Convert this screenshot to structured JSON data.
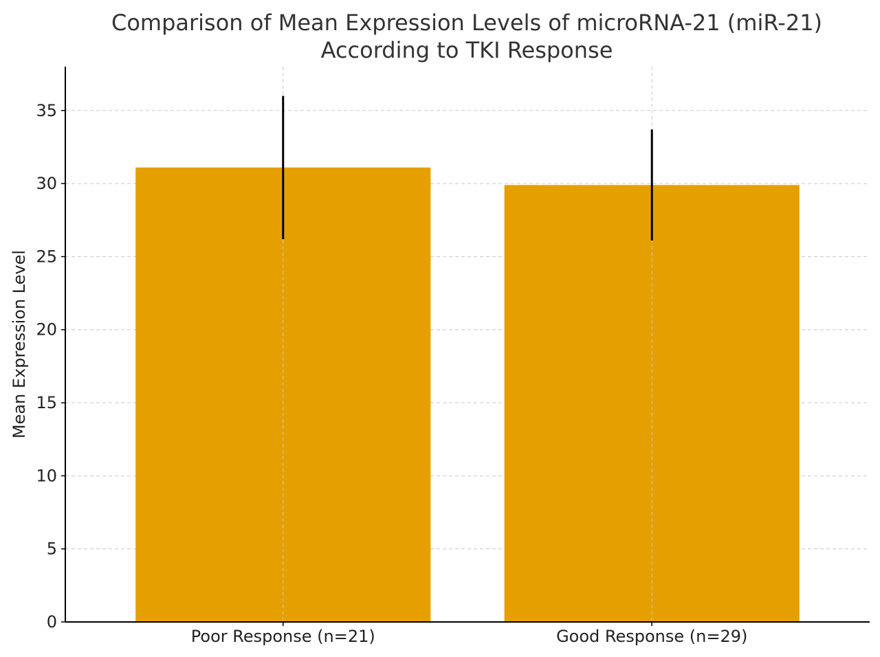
{
  "chart_data": {
    "type": "bar",
    "title": "Comparison of Mean Expression Levels of microRNA-21 (miR-21)",
    "subtitle": "According to TKI Response",
    "xlabel": "",
    "ylabel": "Mean Expression Level",
    "categories": [
      "Poor Response (n=21)",
      "Good Response (n=29)"
    ],
    "values": [
      31.1,
      29.9
    ],
    "error": [
      4.9,
      3.8
    ],
    "ylim": [
      0,
      38
    ],
    "yticks": [
      0,
      5,
      10,
      15,
      20,
      25,
      30,
      35
    ],
    "grid": true,
    "bar_color": "#e5a000",
    "error_color": "#000000"
  }
}
